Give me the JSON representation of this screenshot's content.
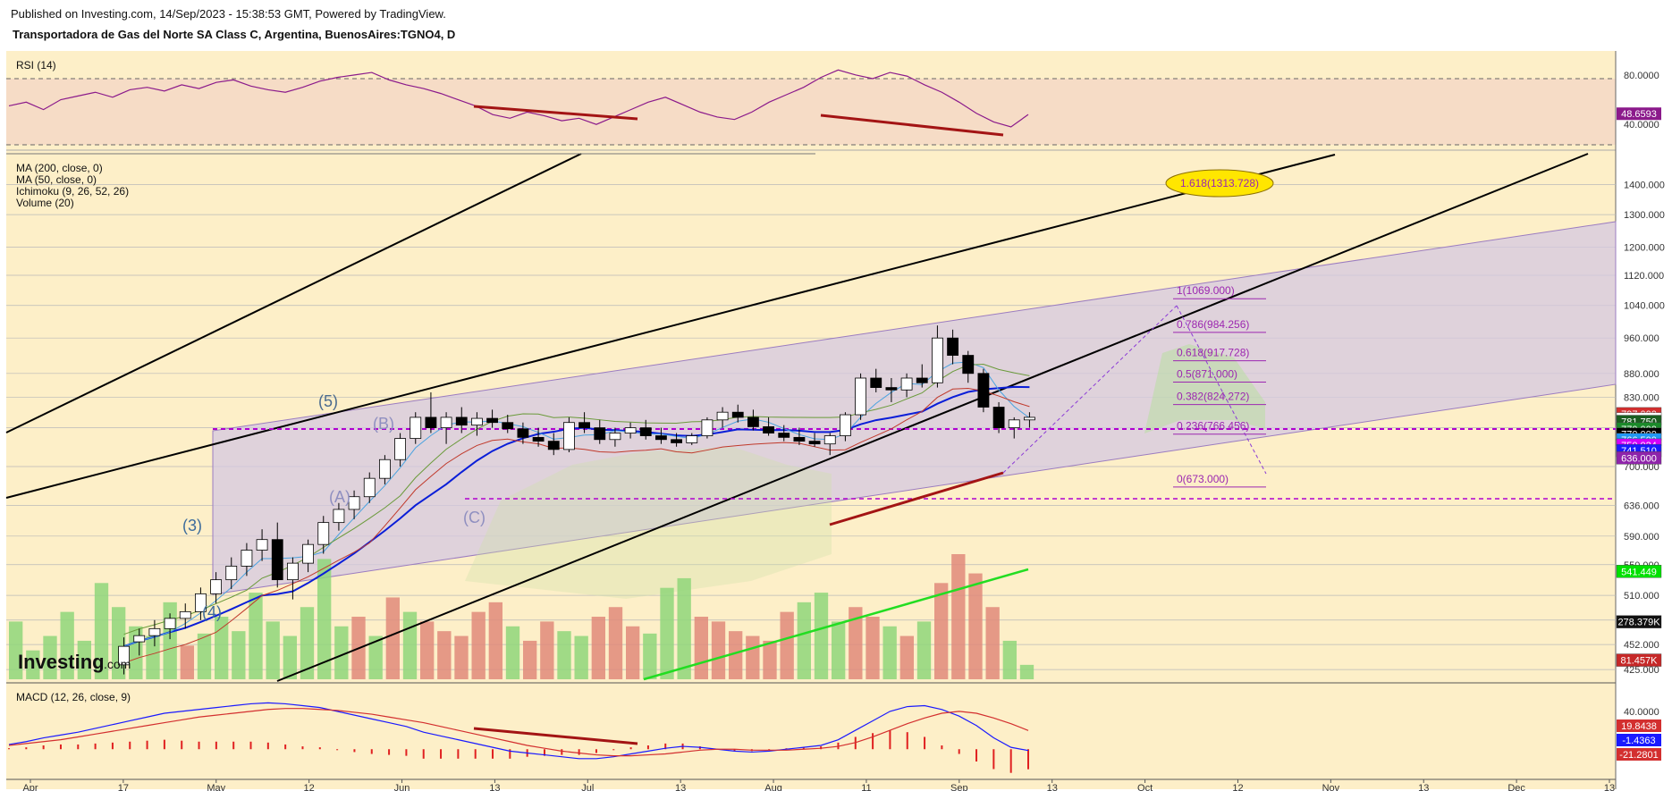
{
  "header": {
    "published": "Published on Investing.com, 14/Sep/2023 - 15:38:53 GMT, Powered by TradingView.",
    "title": "Transportadora de Gas del Norte SA Class C, Argentina, BuenosAires:TGNO4, D"
  },
  "indicators": {
    "rsi": "RSI (14)",
    "ma200": "MA (200, close, 0)",
    "ma50": "MA (50, close, 0)",
    "ichimoku": "Ichimoku (9, 26, 52, 26)",
    "volume": "Volume (20)",
    "macd": "MACD (12, 26, close, 9)"
  },
  "logo": {
    "text": "Investing",
    "suffix": ".com"
  },
  "colors": {
    "background": "#fdefc8",
    "rsi_band": "#f6dcc6",
    "channel": "#d4c8e2",
    "candle_up": "#ffffff",
    "candle_down": "#000000",
    "ma50": "#0a1ed8",
    "ma200_light": "#4aa3e0",
    "fib": "#9c27b0",
    "volume_up": "#8fd67a",
    "volume_down": "#e08a7a",
    "rsi_line": "#8b1a8b",
    "divergence": "#a31414"
  },
  "chart_data": [
    {
      "type": "candlestick",
      "pane": "price",
      "ylim": [
        415,
        1500
      ],
      "y_ticks": [
        "1400.000",
        "1300.000",
        "1200.000",
        "1120.000",
        "1040.000",
        "960.000",
        "880.000",
        "830.000",
        "770.000",
        "700.000",
        "636.000",
        "590.000",
        "550.000",
        "510.000",
        "480.000",
        "452.000",
        "425.000"
      ],
      "x_ticks": [
        "Apr",
        "17",
        "May",
        "12",
        "Jun",
        "13",
        "Jul",
        "13",
        "Aug",
        "11",
        "Sep",
        "13",
        "Oct",
        "12",
        "Nov",
        "13",
        "Dec",
        "13"
      ],
      "value_badges": [
        {
          "label": "797.000",
          "value": 797,
          "color": "#d32f2f"
        },
        {
          "label": "797.000",
          "value": 787,
          "color": "#ffffff"
        },
        {
          "label": "781.750",
          "value": 782,
          "color": "#1b5e20"
        },
        {
          "label": "770.000",
          "value": 768,
          "color": "#1b8a2a"
        },
        {
          "label": "770.000",
          "value": 758,
          "color": "#000000"
        },
        {
          "label": "766.500",
          "value": 748,
          "color": "#2196f3"
        },
        {
          "label": "750.024",
          "value": 738,
          "color": "#d500f9"
        },
        {
          "label": "741.510",
          "value": 728,
          "color": "#1a1aff"
        },
        {
          "label": "636.000",
          "value": 715,
          "color": "#8e24aa"
        },
        {
          "label": "541.449",
          "value": 541,
          "color": "#00e000"
        },
        {
          "label": "278.379K",
          "value": 478,
          "color": "#111111"
        },
        {
          "label": "81.457K",
          "value": 435,
          "color": "#c62828"
        }
      ],
      "ohlc_approx": [
        [
          430,
          460,
          420,
          450
        ],
        [
          455,
          470,
          440,
          462
        ],
        [
          462,
          480,
          450,
          470
        ],
        [
          470,
          488,
          458,
          482
        ],
        [
          482,
          500,
          470,
          490
        ],
        [
          490,
          520,
          480,
          512
        ],
        [
          512,
          540,
          500,
          530
        ],
        [
          530,
          560,
          518,
          548
        ],
        [
          548,
          580,
          535,
          570
        ],
        [
          570,
          600,
          555,
          585
        ],
        [
          585,
          610,
          520,
          530
        ],
        [
          530,
          560,
          505,
          552
        ],
        [
          552,
          585,
          540,
          578
        ],
        [
          578,
          620,
          565,
          610
        ],
        [
          610,
          640,
          598,
          630
        ],
        [
          630,
          660,
          615,
          650
        ],
        [
          650,
          690,
          640,
          680
        ],
        [
          680,
          720,
          670,
          712
        ],
        [
          712,
          760,
          700,
          750
        ],
        [
          750,
          800,
          740,
          790
        ],
        [
          790,
          840,
          760,
          770
        ],
        [
          770,
          800,
          740,
          790
        ],
        [
          790,
          810,
          760,
          775
        ],
        [
          775,
          800,
          755,
          788
        ],
        [
          788,
          805,
          770,
          780
        ],
        [
          780,
          795,
          760,
          768
        ],
        [
          768,
          780,
          740,
          752
        ],
        [
          752,
          770,
          735,
          745
        ],
        [
          745,
          760,
          720,
          730
        ],
        [
          730,
          790,
          725,
          780
        ],
        [
          780,
          800,
          760,
          770
        ],
        [
          770,
          785,
          740,
          748
        ],
        [
          748,
          770,
          735,
          760
        ],
        [
          760,
          780,
          750,
          770
        ],
        [
          770,
          785,
          748,
          755
        ],
        [
          755,
          770,
          740,
          748
        ],
        [
          748,
          760,
          735,
          742
        ],
        [
          742,
          760,
          738,
          755
        ],
        [
          755,
          790,
          750,
          785
        ],
        [
          785,
          810,
          770,
          800
        ],
        [
          800,
          815,
          780,
          790
        ],
        [
          790,
          805,
          765,
          772
        ],
        [
          772,
          790,
          755,
          760
        ],
        [
          760,
          775,
          745,
          752
        ],
        [
          752,
          770,
          738,
          745
        ],
        [
          745,
          760,
          735,
          740
        ],
        [
          740,
          760,
          720,
          755
        ],
        [
          755,
          800,
          745,
          795
        ],
        [
          795,
          880,
          785,
          870
        ],
        [
          870,
          890,
          840,
          850
        ],
        [
          850,
          870,
          820,
          845
        ],
        [
          845,
          880,
          830,
          870
        ],
        [
          870,
          900,
          850,
          860
        ],
        [
          860,
          990,
          850,
          960
        ],
        [
          960,
          980,
          900,
          920
        ],
        [
          920,
          930,
          860,
          880
        ],
        [
          880,
          890,
          800,
          810
        ],
        [
          810,
          820,
          760,
          770
        ],
        [
          770,
          790,
          750,
          785
        ],
        [
          785,
          800,
          770,
          790
        ]
      ],
      "fibonacci": [
        {
          "label": "1.618(1313.728)",
          "value": 1313.728
        },
        {
          "label": "1(1069.000)",
          "value": 1069.0
        },
        {
          "label": "0.786(984.256)",
          "value": 984.256
        },
        {
          "label": "0.618(917.728)",
          "value": 917.728
        },
        {
          "label": "0.5(871.000)",
          "value": 871.0
        },
        {
          "label": "0.382(824.272)",
          "value": 824.272
        },
        {
          "label": "0.236(766.456)",
          "value": 766.456
        },
        {
          "label": "0(673.000)",
          "value": 673.0
        }
      ],
      "wave_labels": [
        "(5)",
        "(B)",
        "(A)",
        "(C)",
        "(3)",
        "(4)"
      ]
    },
    {
      "type": "line",
      "pane": "rsi",
      "name": "RSI (14)",
      "ylim": [
        25,
        90
      ],
      "y_ticks": [
        "80.0000",
        "40.0000"
      ],
      "last_value": "48.6593",
      "values": [
        55,
        58,
        52,
        60,
        63,
        66,
        62,
        68,
        70,
        67,
        72,
        69,
        74,
        76,
        71,
        68,
        66,
        70,
        75,
        78,
        80,
        82,
        76,
        72,
        69,
        65,
        60,
        55,
        48,
        45,
        50,
        47,
        43,
        45,
        40,
        46,
        52,
        58,
        62,
        56,
        50,
        46,
        44,
        50,
        58,
        64,
        70,
        78,
        84,
        80,
        77,
        82,
        79,
        72,
        66,
        58,
        49,
        42,
        38,
        48
      ]
    },
    {
      "type": "bar",
      "pane": "volume",
      "name": "Volume (20)",
      "values": [
        120,
        60,
        90,
        140,
        80,
        200,
        150,
        110,
        90,
        160,
        70,
        95,
        130,
        100,
        180,
        120,
        90,
        150,
        250,
        110,
        130,
        90,
        170,
        140,
        120,
        100,
        90,
        140,
        160,
        110,
        80,
        120,
        100,
        90,
        130,
        150,
        110,
        95,
        190,
        210,
        130,
        120,
        100,
        90,
        80,
        140,
        160,
        180,
        120,
        150,
        130,
        110,
        90,
        120,
        200,
        260,
        220,
        150,
        80,
        30
      ]
    },
    {
      "type": "line",
      "pane": "macd",
      "name": "MACD (12, 26, close, 9)",
      "ylim": [
        -30,
        55
      ],
      "y_ticks": [
        "40.0000"
      ],
      "badges": [
        {
          "label": "19.8438",
          "color": "#d32f2f"
        },
        {
          "label": "-1.4363",
          "color": "#1a1aff"
        },
        {
          "label": "-21.2801",
          "color": "#d32f2f"
        }
      ],
      "macd": [
        5,
        8,
        12,
        15,
        18,
        22,
        26,
        30,
        34,
        38,
        40,
        42,
        44,
        46,
        48,
        49,
        48,
        46,
        44,
        40,
        36,
        32,
        28,
        24,
        18,
        14,
        10,
        6,
        2,
        -2,
        -4,
        -6,
        -8,
        -10,
        -10,
        -8,
        -5,
        -2,
        1,
        3,
        2,
        0,
        -2,
        -3,
        -2,
        0,
        2,
        4,
        10,
        20,
        30,
        40,
        45,
        46,
        42,
        35,
        25,
        12,
        2,
        -1.4
      ],
      "signal": [
        4,
        6,
        8,
        10,
        13,
        16,
        19,
        22,
        25,
        28,
        31,
        34,
        36,
        38,
        40,
        42,
        43,
        43,
        42,
        41,
        39,
        37,
        34,
        31,
        28,
        24,
        20,
        16,
        12,
        8,
        4,
        1,
        -2,
        -4,
        -6,
        -7,
        -7,
        -6,
        -5,
        -3,
        -1,
        0,
        0,
        -1,
        -1,
        -1,
        0,
        1,
        3,
        7,
        13,
        20,
        27,
        33,
        38,
        40,
        38,
        33,
        27,
        19.8
      ]
    }
  ]
}
